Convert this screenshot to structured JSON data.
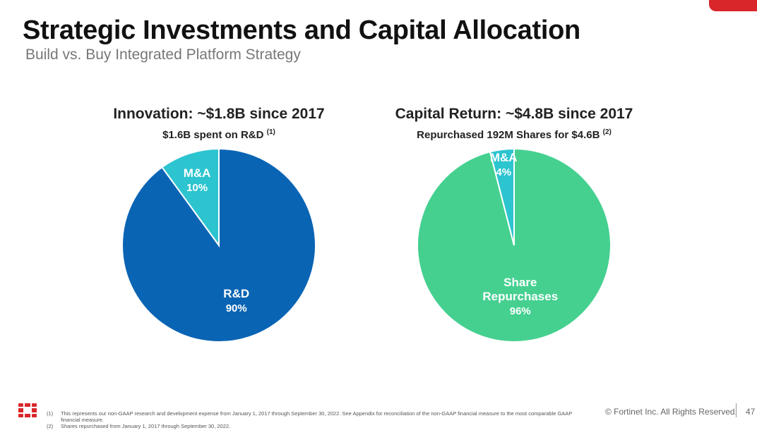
{
  "header": {
    "title": "Strategic Investments and Capital Allocation",
    "subtitle": "Build vs. Buy Integrated Platform Strategy"
  },
  "chart_data": [
    {
      "type": "pie",
      "title": "Innovation: ~$1.8B since 2017",
      "subtitle": "$1.6B spent on R&D",
      "subtitle_note": "(1)",
      "slices": [
        {
          "label": "R&D",
          "value": 90,
          "value_label": "90%",
          "color": "#0a64b4"
        },
        {
          "label": "M&A",
          "value": 10,
          "value_label": "10%",
          "color": "#2cc4cf"
        }
      ]
    },
    {
      "type": "pie",
      "title": "Capital Return: ~$4.8B since 2017",
      "subtitle": "Repurchased 192M Shares for $4.6B",
      "subtitle_note": "(2)",
      "slices": [
        {
          "label": "Share Repurchases",
          "value": 96,
          "value_label": "96%",
          "color": "#45d090"
        },
        {
          "label": "M&A",
          "value": 4,
          "value_label": "4%",
          "color": "#2cc4cf"
        }
      ]
    }
  ],
  "footer": {
    "footnotes": [
      {
        "num": "(1)",
        "text": "This represents our non-GAAP research and development expense from January 1, 2017 through September 30, 2022. See Appendix for reconciliation of the non-GAAP financial measure to the most comparable GAAP financial measure."
      },
      {
        "num": "(2)",
        "text": "Shares repurchased from January 1, 2017 through September 30, 2022."
      }
    ],
    "copyright": "© Fortinet Inc. All Rights Reserved.",
    "page_number": "47",
    "logo": "fortinet-logo-icon",
    "accent_color": "#d9262a"
  }
}
